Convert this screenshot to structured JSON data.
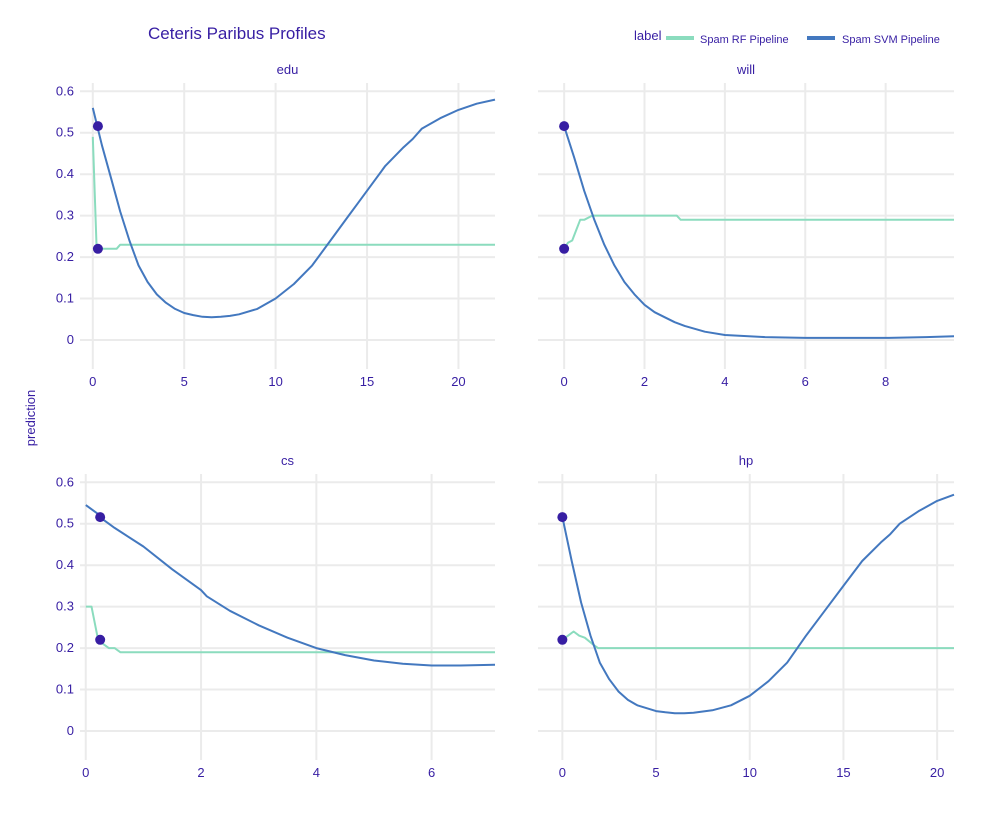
{
  "chart_data": {
    "type": "line",
    "title": "Ceteris Paribus Profiles",
    "ylabel": "prediction",
    "legend": {
      "title": "label",
      "placement": "top-right",
      "entries": [
        {
          "name": "Spam RF Pipeline",
          "color": "#8bdcbe"
        },
        {
          "name": "Spam SVM Pipeline",
          "color": "#4378bf"
        }
      ]
    },
    "point_color": "#371ea3",
    "grid": true,
    "ylim": [
      -0.07,
      0.62
    ],
    "yticks": [
      0,
      0.1,
      0.2,
      0.3,
      0.4,
      0.5,
      0.6
    ],
    "ytick_labels": [
      "0",
      "0.1",
      "0.2",
      "0.3",
      "0.4",
      "0.5",
      "0.6"
    ],
    "panels": [
      {
        "variable": "edu",
        "xlim": [
          -0.7,
          22
        ],
        "xticks": [
          0,
          5,
          10,
          15,
          20
        ],
        "xtick_labels": [
          "0",
          "5",
          "10",
          "15",
          "20"
        ],
        "observation_x": 0.28,
        "series": [
          {
            "name": "Spam RF Pipeline",
            "x": [
              0,
              0.2,
              0.3,
              1.3,
              1.5,
              22
            ],
            "y": [
              0.49,
              0.23,
              0.22,
              0.22,
              0.23,
              0.23
            ]
          },
          {
            "name": "Spam SVM Pipeline",
            "x": [
              0,
              0.5,
              1,
              1.5,
              2,
              2.5,
              3,
              3.5,
              4,
              4.5,
              5,
              5.5,
              6,
              6.5,
              7,
              7.5,
              8,
              9,
              10,
              11,
              12,
              13,
              14,
              14.5,
              15,
              16,
              17,
              17.5,
              18,
              19,
              20,
              21,
              22
            ],
            "y": [
              0.56,
              0.47,
              0.39,
              0.31,
              0.24,
              0.18,
              0.14,
              0.11,
              0.09,
              0.075,
              0.065,
              0.06,
              0.056,
              0.055,
              0.056,
              0.058,
              0.062,
              0.075,
              0.1,
              0.135,
              0.18,
              0.24,
              0.3,
              0.33,
              0.36,
              0.42,
              0.465,
              0.485,
              0.51,
              0.535,
              0.555,
              0.57,
              0.58
            ]
          }
        ],
        "observation_points": [
          0.516,
          0.22
        ]
      },
      {
        "variable": "will",
        "xlim": [
          -0.65,
          9.7
        ],
        "xticks": [
          0,
          2,
          4,
          6,
          8
        ],
        "xtick_labels": [
          "0",
          "2",
          "4",
          "6",
          "8"
        ],
        "observation_x": 0,
        "series": [
          {
            "name": "Spam RF Pipeline",
            "x": [
              0,
              0.1,
              0.2,
              0.3,
              0.4,
              0.5,
              0.7,
              2.8,
              2.9,
              9.7
            ],
            "y": [
              0.22,
              0.235,
              0.24,
              0.265,
              0.29,
              0.29,
              0.3,
              0.3,
              0.29,
              0.29
            ]
          },
          {
            "name": "Spam SVM Pipeline",
            "x": [
              0,
              0.25,
              0.5,
              0.75,
              1,
              1.25,
              1.5,
              1.75,
              2,
              2.25,
              2.5,
              2.75,
              3,
              3.5,
              4,
              5,
              6,
              7,
              8,
              9,
              9.7
            ],
            "y": [
              0.516,
              0.44,
              0.36,
              0.29,
              0.23,
              0.18,
              0.14,
              0.11,
              0.085,
              0.067,
              0.055,
              0.043,
              0.034,
              0.02,
              0.012,
              0.007,
              0.005,
              0.005,
              0.005,
              0.007,
              0.009
            ]
          }
        ],
        "observation_points": [
          0.516,
          0.22
        ]
      },
      {
        "variable": "cs",
        "xlim": [
          -0.1,
          7.1
        ],
        "xticks": [
          0,
          2,
          4,
          6
        ],
        "xtick_labels": [
          "0",
          "2",
          "4",
          "6"
        ],
        "observation_x": 0.25,
        "series": [
          {
            "name": "Spam RF Pipeline",
            "x": [
              0,
              0.1,
              0.2,
              0.3,
              0.4,
              0.5,
              0.6,
              7.1
            ],
            "y": [
              0.3,
              0.3,
              0.23,
              0.21,
              0.2,
              0.2,
              0.19,
              0.19
            ]
          },
          {
            "name": "Spam SVM Pipeline",
            "x": [
              0,
              0.2,
              0.3,
              0.4,
              0.5,
              1,
              1.5,
              2,
              2.1,
              2.5,
              3,
              3.5,
              4,
              4.5,
              5,
              5.5,
              6,
              6.5,
              7.1
            ],
            "y": [
              0.545,
              0.525,
              0.51,
              0.5,
              0.49,
              0.445,
              0.39,
              0.34,
              0.325,
              0.29,
              0.255,
              0.225,
              0.2,
              0.183,
              0.17,
              0.162,
              0.158,
              0.158,
              0.16
            ]
          }
        ],
        "observation_points": [
          0.516,
          0.22
        ]
      },
      {
        "variable": "hp",
        "xlim": [
          -1.3,
          20.9
        ],
        "xticks": [
          0,
          5,
          10,
          15,
          20
        ],
        "xtick_labels": [
          "0",
          "5",
          "10",
          "15",
          "20"
        ],
        "observation_x": 0,
        "series": [
          {
            "name": "Spam RF Pipeline",
            "x": [
              0,
              0.3,
              0.6,
              0.9,
              1.2,
              1.6,
              1.9,
              20.9
            ],
            "y": [
              0.22,
              0.23,
              0.24,
              0.23,
              0.225,
              0.21,
              0.2,
              0.2
            ]
          },
          {
            "name": "Spam SVM Pipeline",
            "x": [
              0,
              0.5,
              1,
              1.5,
              2,
              2.5,
              3,
              3.5,
              4,
              4.5,
              5,
              5.5,
              6,
              6.5,
              7,
              8,
              9,
              10,
              11,
              12,
              13,
              14,
              15,
              16,
              17,
              17.5,
              18,
              19,
              20,
              20.9
            ],
            "y": [
              0.516,
              0.41,
              0.31,
              0.23,
              0.165,
              0.125,
              0.095,
              0.075,
              0.062,
              0.055,
              0.048,
              0.045,
              0.043,
              0.043,
              0.044,
              0.05,
              0.062,
              0.085,
              0.12,
              0.165,
              0.23,
              0.29,
              0.35,
              0.41,
              0.455,
              0.475,
              0.5,
              0.53,
              0.555,
              0.57
            ]
          }
        ],
        "observation_points": [
          0.516,
          0.22
        ]
      }
    ]
  }
}
